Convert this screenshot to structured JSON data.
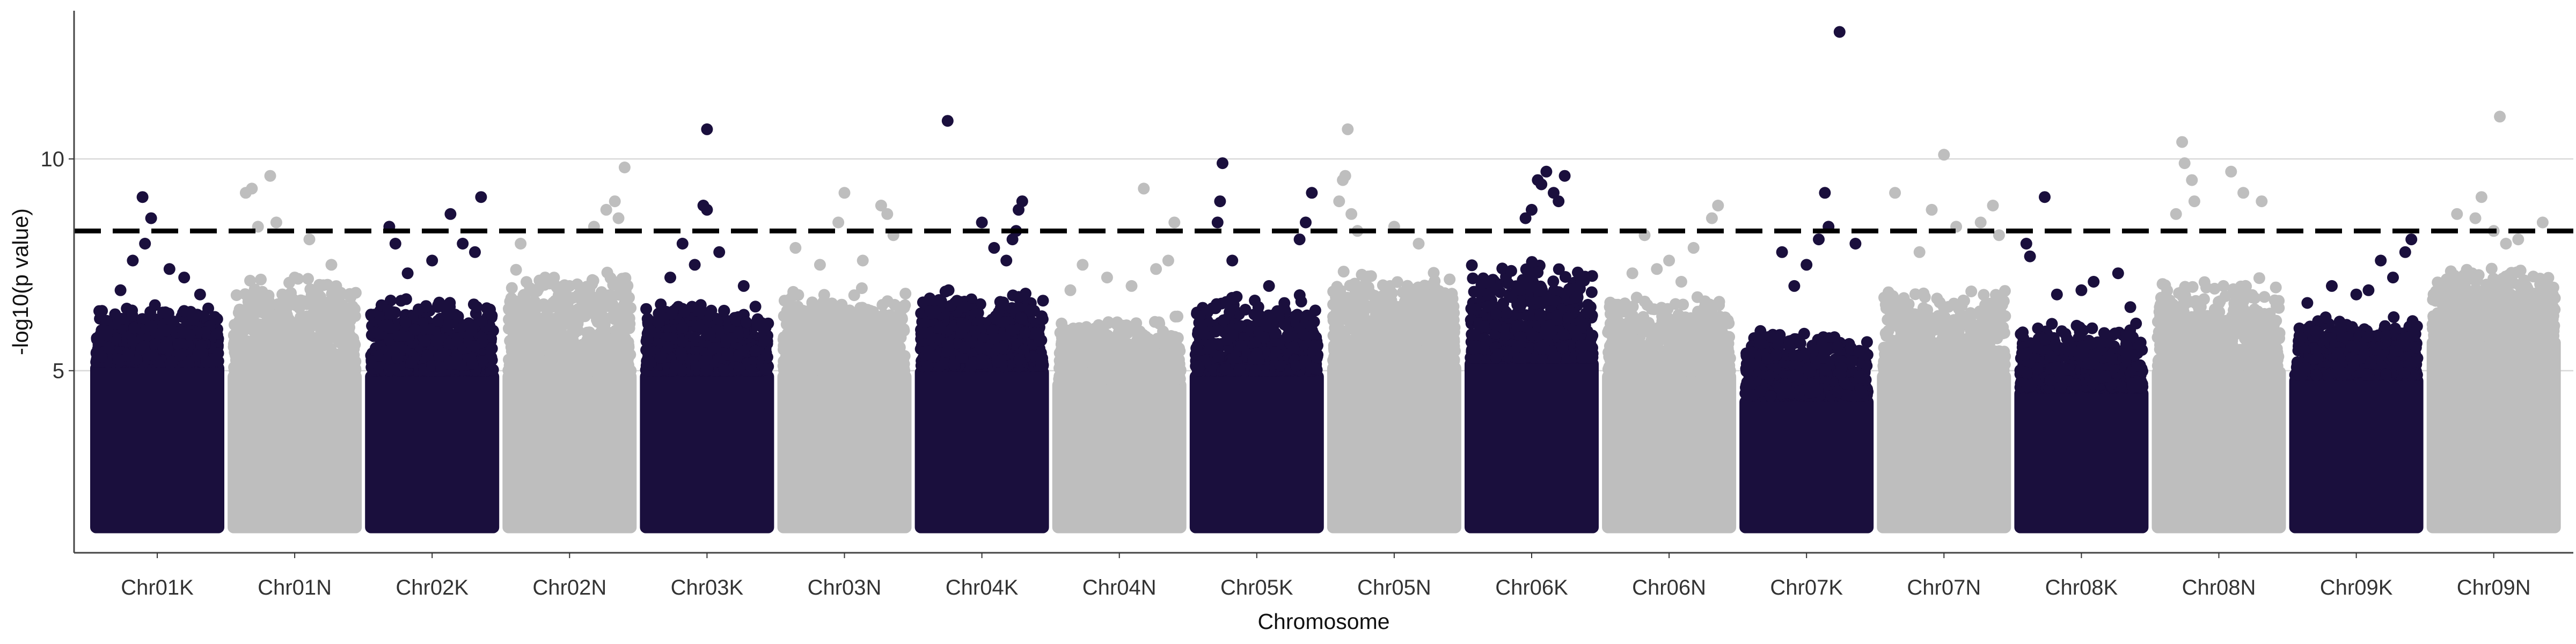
{
  "chart_data": {
    "type": "scatter",
    "subtype": "manhattan",
    "title": "",
    "xlabel": "Chromosome",
    "ylabel": "-log10(p value)",
    "ylim": [
      0.7,
      13.5
    ],
    "yticks": [
      5,
      10
    ],
    "grid": "horizontal major lines only",
    "legend": "none",
    "significance_threshold": 8.3,
    "colors": {
      "odd": "#1a0f3d",
      "even": "#bebebe",
      "threshold": "#000000",
      "grid": "#d9d9d9"
    },
    "categories": [
      "Chr01K",
      "Chr01N",
      "Chr02K",
      "Chr02N",
      "Chr03K",
      "Chr03N",
      "Chr04K",
      "Chr04N",
      "Chr05K",
      "Chr05N",
      "Chr06K",
      "Chr06N",
      "Chr07K",
      "Chr07N",
      "Chr08K",
      "Chr08N",
      "Chr09K",
      "Chr09N"
    ],
    "series": [
      {
        "chromosome": "Chr01K",
        "color": "#1a0f3d",
        "base_max": 5.2,
        "dense_max": 6.6,
        "top_hits": [
          [
            0.38,
            9.1
          ],
          [
            0.45,
            8.6
          ],
          [
            0.4,
            8.0
          ],
          [
            0.6,
            7.4
          ],
          [
            0.72,
            7.2
          ],
          [
            0.2,
            6.9
          ],
          [
            0.3,
            7.6
          ],
          [
            0.85,
            6.8
          ]
        ]
      },
      {
        "chromosome": "Chr01N",
        "color": "#bebebe",
        "base_max": 5.0,
        "dense_max": 7.3,
        "top_hits": [
          [
            0.15,
            9.3
          ],
          [
            0.3,
            9.6
          ],
          [
            0.1,
            9.2
          ],
          [
            0.2,
            8.4
          ],
          [
            0.35,
            8.5
          ],
          [
            0.62,
            8.1
          ],
          [
            0.8,
            7.5
          ],
          [
            0.5,
            7.2
          ]
        ]
      },
      {
        "chromosome": "Chr02K",
        "color": "#1a0f3d",
        "base_max": 5.0,
        "dense_max": 6.8,
        "top_hits": [
          [
            0.15,
            8.4
          ],
          [
            0.65,
            8.7
          ],
          [
            0.9,
            9.1
          ],
          [
            0.2,
            8.0
          ],
          [
            0.75,
            8.0
          ],
          [
            0.5,
            7.6
          ],
          [
            0.3,
            7.3
          ],
          [
            0.85,
            7.8
          ]
        ]
      },
      {
        "chromosome": "Chr02N",
        "color": "#bebebe",
        "base_max": 5.0,
        "dense_max": 7.5,
        "top_hits": [
          [
            0.95,
            9.8
          ],
          [
            0.87,
            9.0
          ],
          [
            0.8,
            8.8
          ],
          [
            0.7,
            8.4
          ],
          [
            0.1,
            8.0
          ],
          [
            0.3,
            7.2
          ],
          [
            0.5,
            7.0
          ],
          [
            0.9,
            8.6
          ]
        ]
      },
      {
        "chromosome": "Chr03K",
        "color": "#1a0f3d",
        "base_max": 5.0,
        "dense_max": 6.7,
        "top_hits": [
          [
            0.5,
            10.7
          ],
          [
            0.47,
            8.9
          ],
          [
            0.5,
            8.8
          ],
          [
            0.3,
            8.0
          ],
          [
            0.6,
            7.8
          ],
          [
            0.2,
            7.2
          ],
          [
            0.8,
            7.0
          ],
          [
            0.4,
            7.5
          ]
        ]
      },
      {
        "chromosome": "Chr03N",
        "color": "#bebebe",
        "base_max": 5.0,
        "dense_max": 7.0,
        "top_hits": [
          [
            0.5,
            9.2
          ],
          [
            0.45,
            8.5
          ],
          [
            0.8,
            8.9
          ],
          [
            0.85,
            8.7
          ],
          [
            0.1,
            7.9
          ],
          [
            0.3,
            7.5
          ],
          [
            0.65,
            7.6
          ],
          [
            0.9,
            8.2
          ]
        ]
      },
      {
        "chromosome": "Chr04K",
        "color": "#1a0f3d",
        "base_max": 5.1,
        "dense_max": 7.0,
        "top_hits": [
          [
            0.22,
            10.9
          ],
          [
            0.83,
            9.0
          ],
          [
            0.8,
            8.8
          ],
          [
            0.5,
            8.5
          ],
          [
            0.78,
            8.3
          ],
          [
            0.75,
            8.1
          ],
          [
            0.6,
            7.9
          ],
          [
            0.7,
            7.6
          ]
        ]
      },
      {
        "chromosome": "Chr04N",
        "color": "#bebebe",
        "base_max": 4.8,
        "dense_max": 6.3,
        "top_hits": [
          [
            0.7,
            9.3
          ],
          [
            0.95,
            8.5
          ],
          [
            0.2,
            7.5
          ],
          [
            0.4,
            7.2
          ],
          [
            0.6,
            7.0
          ],
          [
            0.8,
            7.4
          ],
          [
            0.1,
            6.9
          ],
          [
            0.9,
            7.6
          ]
        ]
      },
      {
        "chromosome": "Chr05K",
        "color": "#1a0f3d",
        "base_max": 5.0,
        "dense_max": 6.8,
        "top_hits": [
          [
            0.22,
            9.9
          ],
          [
            0.2,
            9.0
          ],
          [
            0.18,
            8.5
          ],
          [
            0.95,
            9.2
          ],
          [
            0.9,
            8.5
          ],
          [
            0.85,
            8.1
          ],
          [
            0.3,
            7.6
          ],
          [
            0.6,
            7.0
          ]
        ]
      },
      {
        "chromosome": "Chr05N",
        "color": "#bebebe",
        "base_max": 5.2,
        "dense_max": 7.5,
        "top_hits": [
          [
            0.12,
            10.7
          ],
          [
            0.1,
            9.6
          ],
          [
            0.08,
            9.5
          ],
          [
            0.05,
            9.0
          ],
          [
            0.15,
            8.7
          ],
          [
            0.2,
            8.3
          ],
          [
            0.5,
            8.4
          ],
          [
            0.7,
            8.0
          ]
        ]
      },
      {
        "chromosome": "Chr06K",
        "color": "#1a0f3d",
        "base_max": 5.3,
        "dense_max": 7.7,
        "top_hits": [
          [
            0.62,
            9.7
          ],
          [
            0.77,
            9.6
          ],
          [
            0.55,
            9.5
          ],
          [
            0.58,
            9.4
          ],
          [
            0.68,
            9.2
          ],
          [
            0.72,
            9.0
          ],
          [
            0.5,
            8.8
          ],
          [
            0.45,
            8.6
          ]
        ]
      },
      {
        "chromosome": "Chr06N",
        "color": "#bebebe",
        "base_max": 5.0,
        "dense_max": 6.8,
        "top_hits": [
          [
            0.9,
            8.9
          ],
          [
            0.85,
            8.6
          ],
          [
            0.3,
            8.2
          ],
          [
            0.5,
            7.6
          ],
          [
            0.2,
            7.3
          ],
          [
            0.7,
            7.9
          ],
          [
            0.4,
            7.4
          ],
          [
            0.6,
            7.1
          ]
        ]
      },
      {
        "chromosome": "Chr07K",
        "color": "#1a0f3d",
        "base_max": 4.4,
        "dense_max": 6.0,
        "top_hits": [
          [
            0.77,
            13.0
          ],
          [
            0.65,
            9.2
          ],
          [
            0.68,
            8.4
          ],
          [
            0.6,
            8.1
          ],
          [
            0.9,
            8.0
          ],
          [
            0.3,
            7.8
          ],
          [
            0.5,
            7.5
          ],
          [
            0.4,
            7.0
          ]
        ]
      },
      {
        "chromosome": "Chr07N",
        "color": "#bebebe",
        "base_max": 5.0,
        "dense_max": 7.0,
        "top_hits": [
          [
            0.5,
            10.1
          ],
          [
            0.4,
            8.8
          ],
          [
            0.9,
            8.9
          ],
          [
            0.8,
            8.5
          ],
          [
            0.1,
            9.2
          ],
          [
            0.6,
            8.4
          ],
          [
            0.3,
            7.8
          ],
          [
            0.95,
            8.2
          ]
        ]
      },
      {
        "chromosome": "Chr08K",
        "color": "#1a0f3d",
        "base_max": 4.6,
        "dense_max": 6.2,
        "top_hits": [
          [
            0.2,
            9.1
          ],
          [
            0.05,
            8.0
          ],
          [
            0.08,
            7.7
          ],
          [
            0.8,
            7.3
          ],
          [
            0.6,
            7.1
          ],
          [
            0.3,
            6.8
          ],
          [
            0.5,
            6.9
          ],
          [
            0.9,
            6.5
          ]
        ]
      },
      {
        "chromosome": "Chr08N",
        "color": "#bebebe",
        "base_max": 5.1,
        "dense_max": 7.2,
        "top_hits": [
          [
            0.2,
            10.4
          ],
          [
            0.22,
            9.9
          ],
          [
            0.28,
            9.5
          ],
          [
            0.3,
            9.0
          ],
          [
            0.15,
            8.7
          ],
          [
            0.6,
            9.7
          ],
          [
            0.7,
            9.2
          ],
          [
            0.85,
            9.0
          ]
        ]
      },
      {
        "chromosome": "Chr09K",
        "color": "#1a0f3d",
        "base_max": 4.9,
        "dense_max": 6.3,
        "top_hits": [
          [
            0.95,
            8.1
          ],
          [
            0.9,
            7.8
          ],
          [
            0.7,
            7.6
          ],
          [
            0.3,
            7.0
          ],
          [
            0.5,
            6.8
          ],
          [
            0.8,
            7.2
          ],
          [
            0.1,
            6.6
          ],
          [
            0.6,
            6.9
          ]
        ]
      },
      {
        "chromosome": "Chr09N",
        "color": "#bebebe",
        "base_max": 5.8,
        "dense_max": 7.5,
        "top_hits": [
          [
            0.55,
            11.0
          ],
          [
            0.4,
            9.1
          ],
          [
            0.35,
            8.6
          ],
          [
            0.2,
            8.7
          ],
          [
            0.9,
            8.5
          ],
          [
            0.5,
            8.3
          ],
          [
            0.7,
            8.1
          ],
          [
            0.6,
            8.0
          ]
        ]
      }
    ]
  }
}
